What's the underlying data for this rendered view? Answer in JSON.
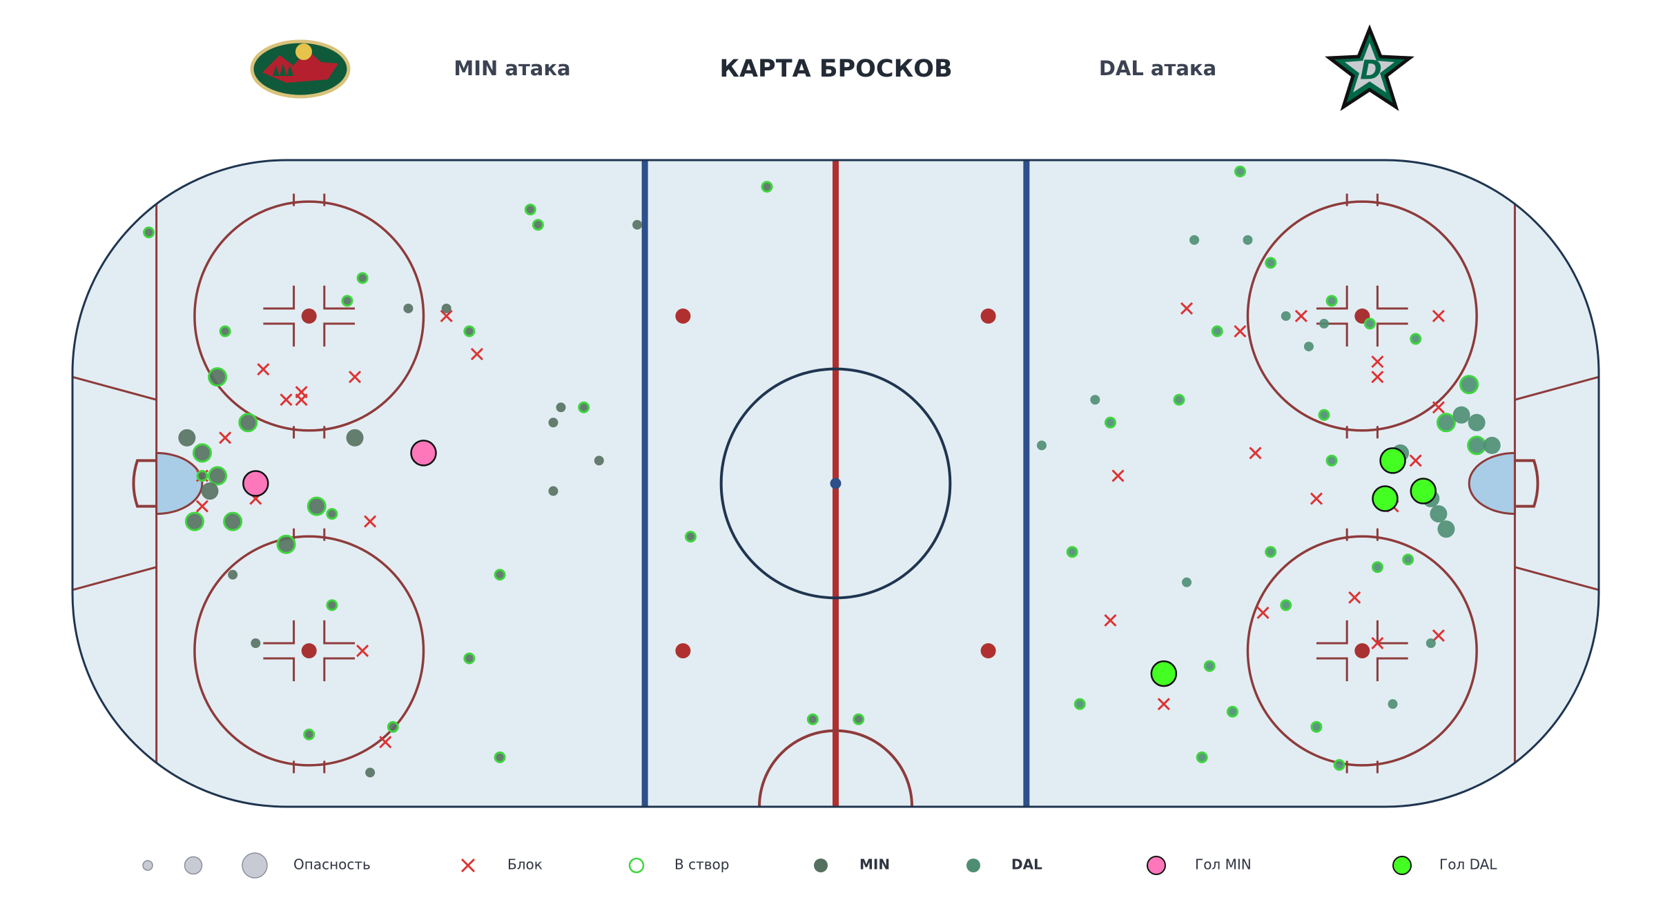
{
  "chart_data": {
    "type": "scatter",
    "title": "КАРТА БРОСКОВ",
    "left_label": "MIN атака",
    "right_label": "DAL атака",
    "xlim": [
      -100,
      100
    ],
    "ylim": [
      -42.5,
      42.5
    ],
    "size_label": "Опасность",
    "size_legend_values": [
      1,
      2,
      3
    ],
    "on_target_label": "В створ",
    "on_target_color": "#3fd63f",
    "series": [
      {
        "name": "MIN",
        "color": "#55705f",
        "x": [
          -90,
          -40,
          -39,
          -9,
          -62,
          -64,
          -80,
          -48,
          -81,
          -77,
          -83,
          -83,
          -81,
          -84,
          -79,
          -68,
          -66,
          -72,
          -44,
          -66,
          -48,
          -58,
          -69,
          -44,
          -33,
          -19,
          -3,
          3,
          -26,
          -56,
          -51,
          -63,
          -85,
          -82,
          -79,
          -76,
          -61,
          -36,
          -37,
          -31,
          -37
        ],
        "y": [
          33,
          36,
          34,
          39,
          27,
          24,
          20,
          20,
          14,
          8,
          4,
          1,
          1,
          -5,
          -5,
          -3,
          -4,
          -8,
          -12,
          -16,
          -23,
          -32,
          -33,
          -36,
          10,
          -7,
          -31,
          -31,
          34,
          23,
          23,
          6,
          6,
          -1,
          -12,
          -21,
          -38,
          10,
          8,
          3,
          -1
        ],
        "sizes": [
          1,
          1,
          1,
          1,
          1,
          1,
          1,
          1,
          2,
          2,
          2,
          1,
          2,
          2,
          2,
          2,
          1,
          2,
          1,
          1,
          1,
          1,
          1,
          1,
          1,
          1,
          1,
          1,
          1,
          1,
          1,
          2,
          2,
          2,
          1,
          1,
          1,
          1,
          1,
          1,
          1
        ],
        "on_target": [
          true,
          true,
          true,
          true,
          true,
          true,
          true,
          true,
          true,
          true,
          true,
          true,
          true,
          true,
          true,
          true,
          true,
          true,
          true,
          true,
          true,
          true,
          true,
          true,
          true,
          true,
          true,
          true,
          false,
          false,
          false,
          false,
          false,
          false,
          false,
          false,
          false,
          false,
          false,
          false,
          false
        ]
      },
      {
        "name": "DAL",
        "color": "#4e8d72",
        "x": [
          53,
          57,
          50,
          65,
          70,
          76,
          83,
          80,
          84,
          36,
          45,
          64,
          65,
          31,
          57,
          71,
          75,
          59,
          49,
          32,
          52,
          63,
          48,
          66,
          47,
          54,
          59,
          64,
          62,
          34,
          27,
          82,
          84,
          86,
          74,
          78,
          79,
          80,
          46,
          78,
          73
        ],
        "y": [
          41,
          29,
          20,
          24,
          21,
          19,
          13,
          8,
          5,
          8,
          11,
          9,
          3,
          -9,
          -9,
          -11,
          -10,
          -16,
          -24,
          -29,
          -30,
          -32,
          -36,
          -37,
          32,
          32,
          22,
          21,
          18,
          11,
          5,
          9,
          8,
          5,
          4,
          -2,
          -4,
          -6,
          -13,
          -21,
          -29
        ],
        "sizes": [
          1,
          1,
          1,
          1,
          1,
          1,
          2,
          2,
          2,
          1,
          1,
          1,
          1,
          1,
          1,
          1,
          1,
          1,
          1,
          1,
          1,
          1,
          1,
          1,
          1,
          1,
          1,
          1,
          1,
          1,
          1,
          2,
          2,
          2,
          2,
          2,
          2,
          2,
          1,
          1,
          1
        ],
        "on_target": [
          true,
          true,
          true,
          true,
          true,
          true,
          true,
          true,
          true,
          true,
          true,
          true,
          true,
          true,
          true,
          true,
          true,
          true,
          true,
          true,
          true,
          true,
          true,
          true,
          false,
          false,
          false,
          false,
          false,
          false,
          false,
          false,
          false,
          false,
          false,
          false,
          false,
          false,
          false,
          false,
          false
        ]
      },
      {
        "name": "Гол MIN",
        "color": "#ff77bb",
        "x": [
          -76,
          -54
        ],
        "y": [
          0,
          4
        ],
        "sizes": [
          3,
          3
        ]
      },
      {
        "name": "Гол DAL",
        "color": "#44ff22",
        "x": [
          73,
          72,
          77,
          43
        ],
        "y": [
          3,
          -2,
          -1,
          -25
        ],
        "sizes": [
          3,
          3,
          3,
          3
        ]
      },
      {
        "name": "Блок",
        "color": "#dd3333",
        "marker": "x",
        "x": [
          -51,
          -47,
          -75,
          -63,
          -70,
          -72,
          -70,
          -80,
          -83,
          -76,
          -83,
          -61,
          -62,
          -59,
          46,
          61,
          53,
          79,
          71,
          71,
          79,
          55,
          37,
          76,
          63,
          73,
          68,
          56,
          36,
          71,
          79,
          43
        ],
        "y": [
          22,
          17,
          15,
          14,
          12,
          11,
          11,
          6,
          1,
          -2,
          -3,
          -5,
          -22,
          -34,
          23,
          22,
          20,
          22,
          16,
          14,
          10,
          4,
          1,
          3,
          -2,
          -3,
          -15,
          -17,
          -18,
          -21,
          -20,
          -29
        ]
      }
    ]
  }
}
